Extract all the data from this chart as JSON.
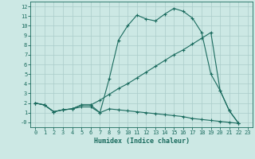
{
  "xlabel": "Humidex (Indice chaleur)",
  "bg_color": "#cce8e4",
  "grid_color": "#aaccca",
  "line_color": "#1a6b5e",
  "xlim": [
    -0.5,
    23.5
  ],
  "ylim": [
    -0.5,
    12.5
  ],
  "xticks": [
    0,
    1,
    2,
    3,
    4,
    5,
    6,
    7,
    8,
    9,
    10,
    11,
    12,
    13,
    14,
    15,
    16,
    17,
    18,
    19,
    20,
    21,
    22,
    23
  ],
  "yticks": [
    0,
    1,
    2,
    3,
    4,
    5,
    6,
    7,
    8,
    9,
    10,
    11,
    12
  ],
  "series1_x": [
    0,
    1,
    2,
    3,
    4,
    5,
    6,
    7,
    8,
    9,
    10,
    11,
    12,
    13,
    14,
    15,
    16,
    17,
    18,
    19,
    20,
    21,
    22
  ],
  "series1_y": [
    2.0,
    1.8,
    1.1,
    1.3,
    1.4,
    1.8,
    1.8,
    1.0,
    4.5,
    8.5,
    10.0,
    11.1,
    10.7,
    10.5,
    11.2,
    11.8,
    11.5,
    10.8,
    9.3,
    5.0,
    3.3,
    1.2,
    -0.1
  ],
  "series2_x": [
    0,
    1,
    2,
    3,
    4,
    5,
    6,
    7,
    8,
    9,
    10,
    11,
    12,
    13,
    14,
    15,
    16,
    17,
    18,
    19,
    20,
    21,
    22
  ],
  "series2_y": [
    2.0,
    1.8,
    1.1,
    1.3,
    1.4,
    1.8,
    1.8,
    2.3,
    2.9,
    3.5,
    4.0,
    4.6,
    5.2,
    5.8,
    6.4,
    7.0,
    7.5,
    8.1,
    8.7,
    9.3,
    3.3,
    1.2,
    -0.1
  ],
  "series3_x": [
    0,
    1,
    2,
    3,
    4,
    5,
    6,
    7,
    8,
    9,
    10,
    11,
    12,
    13,
    14,
    15,
    16,
    17,
    18,
    19,
    20,
    21,
    22
  ],
  "series3_y": [
    2.0,
    1.8,
    1.1,
    1.3,
    1.4,
    1.6,
    1.6,
    1.0,
    1.4,
    1.3,
    1.2,
    1.1,
    1.0,
    0.9,
    0.8,
    0.7,
    0.6,
    0.4,
    0.3,
    0.2,
    0.1,
    0.0,
    -0.1
  ]
}
